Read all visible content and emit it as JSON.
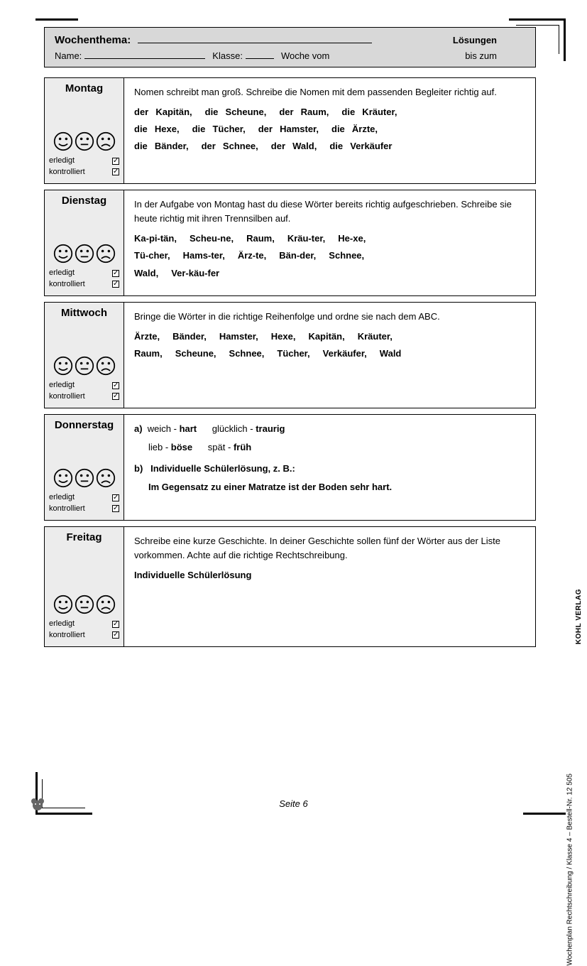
{
  "header": {
    "wochenthema_label": "Wochenthema:",
    "loesungen": "Lösungen",
    "name_label": "Name:",
    "klasse_label": "Klasse:",
    "woche_vom": "Woche vom",
    "bis_zum": "bis zum"
  },
  "side": {
    "erledigt": "erledigt",
    "kontrolliert": "kontrolliert"
  },
  "days": {
    "montag": {
      "title": "Montag",
      "intro": "Nomen schreibt man groß. Schreibe die Nomen mit dem passenden Begleiter richtig auf.",
      "rows": [
        [
          "der Kapitän,",
          "die Scheune,",
          "der Raum,",
          "die Kräuter,"
        ],
        [
          "die Hexe,",
          "die Tücher,",
          "der Hamster,",
          "die Ärzte,"
        ],
        [
          "die Bänder,",
          "der Schnee,",
          "der Wald,",
          "die Verkäufer"
        ]
      ]
    },
    "dienstag": {
      "title": "Dienstag",
      "intro": "In der Aufgabe von Montag hast du diese Wörter bereits richtig aufgeschrieben. Schreibe sie heute richtig mit ihren Trennsilben auf.",
      "rows": [
        [
          "Ka-pi-tän,",
          "Scheu-ne,",
          "Raum,",
          "Kräu-ter,",
          "He-xe,"
        ],
        [
          "Tü-cher,",
          "Hams-ter,",
          "Ärz-te,",
          "Bän-der,",
          "Schnee,"
        ],
        [
          "Wald,",
          "Ver-käu-fer"
        ]
      ]
    },
    "mittwoch": {
      "title": "Mittwoch",
      "intro": "Bringe die Wörter in die richtige Reihenfolge und ordne sie nach dem ABC.",
      "rows": [
        [
          "Ärzte,",
          "Bänder,",
          "Hamster,",
          "Hexe,",
          "Kapitän,",
          "Kräuter,"
        ],
        [
          "Raum,",
          "Scheune,",
          "Schnee,",
          "Tücher,",
          "Verkäufer,",
          "Wald"
        ]
      ]
    },
    "donnerstag": {
      "title": "Donnerstag",
      "a_label": "a)",
      "a_line1_plain1": "weich - ",
      "a_line1_bold1": "hart",
      "a_line1_plain2": "glücklich - ",
      "a_line1_bold2": "traurig",
      "a_line2_plain1": "lieb - ",
      "a_line2_bold1": "böse",
      "a_line2_plain2": "spät - ",
      "a_line2_bold2": "früh",
      "b_label": "b)",
      "b_text": "Individuelle Schülerlösung, z. B.:",
      "b_example": "Im Gegensatz zu einer Matratze ist der Boden sehr hart."
    },
    "freitag": {
      "title": "Freitag",
      "intro": "Schreibe eine kurze Geschichte. In deiner Geschichte sollen fünf der Wörter aus der Liste vorkommen. Achte auf die richtige Rechtschreibung.",
      "answer": "Individuelle Schülerlösung"
    }
  },
  "footer": {
    "page": "Seite 6",
    "side_text": "Wochenplan Rechtschreibung   /   Klasse 4    –    Bestell-Nr. 12 505",
    "publisher": "KOHL VERLAG"
  },
  "colors": {
    "header_bg": "#d8d8d8",
    "side_bg": "#ececec",
    "border": "#000000",
    "text": "#000000"
  }
}
